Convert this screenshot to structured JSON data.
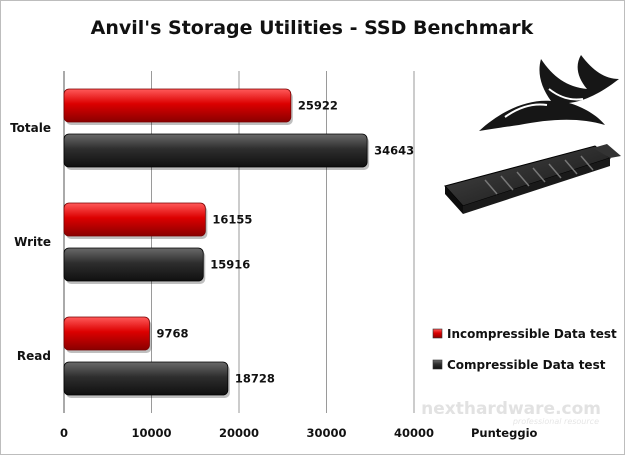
{
  "chart_data": {
    "type": "bar",
    "orientation": "horizontal",
    "title": "Anvil's Storage Utilities - SSD Benchmark",
    "xlabel": "Punteggio",
    "ylabel": "",
    "xlim": [
      0,
      40000
    ],
    "xticks": [
      0,
      10000,
      20000,
      30000,
      40000
    ],
    "categories": [
      "Totale",
      "Write",
      "Read"
    ],
    "series": [
      {
        "name": "Incompressible Data test",
        "color": "#cc0000",
        "values": [
          25922,
          16155,
          9768
        ]
      },
      {
        "name": "Compressible Data test",
        "color": "#2b2b2b",
        "values": [
          34643,
          15916,
          18728
        ]
      }
    ],
    "grid": "vertical",
    "legend_position": "bottom-right"
  },
  "watermark": {
    "text": "nexthardware.com",
    "sub": "professional resource"
  },
  "images": {
    "logo": "corsair-sails-logo",
    "product": "m2-ssd-heatsink"
  }
}
